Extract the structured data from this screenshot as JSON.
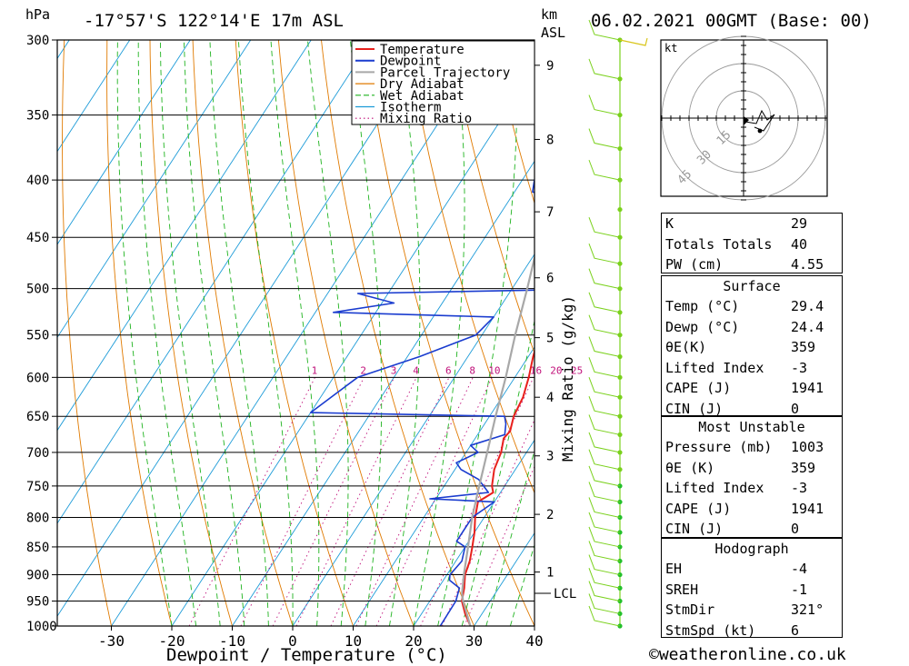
{
  "header": {
    "location": "-17°57'S 122°14'E 17m ASL",
    "datetime": "06.02.2021 00GMT (Base: 00)",
    "unit_left": "hPa",
    "unit_right_1": "km",
    "unit_right_2": "ASL"
  },
  "chart_data": {
    "type": "line",
    "title": "-17°57'S 122°14'E 17m ASL",
    "xlabel": "Dewpoint / Temperature (°C)",
    "ylabel": "hPa",
    "y2label": "Mixing Ratio (g/kg)",
    "pressure_levels": [
      300,
      350,
      400,
      450,
      500,
      550,
      600,
      650,
      700,
      750,
      800,
      850,
      900,
      950,
      1000
    ],
    "x_ticks": [
      -30,
      -20,
      -10,
      0,
      10,
      20,
      30,
      40
    ],
    "km_ticks": [
      {
        "label": "9",
        "p": 316
      },
      {
        "label": "8",
        "p": 368
      },
      {
        "label": "7",
        "p": 427
      },
      {
        "label": "6",
        "p": 489
      },
      {
        "label": "5",
        "p": 553
      },
      {
        "label": "4",
        "p": 625
      },
      {
        "label": "3",
        "p": 705
      },
      {
        "label": "2",
        "p": 795
      },
      {
        "label": "1",
        "p": 895
      }
    ],
    "lcl": {
      "label": "LCL",
      "p": 935
    },
    "mixing_ratio_labels": [
      "1",
      "2",
      "3",
      "4",
      "6",
      "8",
      "10",
      "16",
      "20",
      "25"
    ],
    "legend": [
      "Temperature",
      "Dewpoint",
      "Parcel Trajectory",
      "Dry Adiabat",
      "Wet Adiabat",
      "Isotherm",
      "Mixing Ratio"
    ],
    "legend_position": "top-right",
    "colors": {
      "temperature": "#e8201c",
      "dewpoint": "#1a3ccf",
      "parcel": "#a8a8a8",
      "dry_adiabat": "#e07a00",
      "wet_adiabat": "#1fb31f",
      "isotherm": "#1d9bd8",
      "mixing_ratio": "#c0107a",
      "wind": "#7ad11c"
    },
    "series": [
      {
        "name": "Temperature",
        "points": [
          [
            1000,
            29.4
          ],
          [
            975,
            27.2
          ],
          [
            950,
            25.3
          ],
          [
            925,
            24.3
          ],
          [
            900,
            23.0
          ],
          [
            875,
            22.3
          ],
          [
            850,
            21.2
          ],
          [
            825,
            20.0
          ],
          [
            800,
            18.5
          ],
          [
            775,
            17.3
          ],
          [
            760,
            18.8
          ],
          [
            750,
            17.9
          ],
          [
            725,
            16.5
          ],
          [
            700,
            15.8
          ],
          [
            680,
            14.7
          ],
          [
            670,
            15.0
          ],
          [
            650,
            14.0
          ],
          [
            625,
            13.5
          ],
          [
            600,
            12.3
          ],
          [
            575,
            10.8
          ],
          [
            550,
            9.5
          ],
          [
            530,
            8.2
          ],
          [
            520,
            9.3
          ],
          [
            500,
            8.6
          ],
          [
            475,
            6.8
          ],
          [
            450,
            5.6
          ],
          [
            425,
            4.5
          ],
          [
            400,
            3.3
          ],
          [
            375,
            1.8
          ],
          [
            360,
            0.5
          ]
        ]
      },
      {
        "name": "Dewpoint",
        "points": [
          [
            1000,
            24.4
          ],
          [
            950,
            24.3
          ],
          [
            925,
            23.5
          ],
          [
            910,
            21.0
          ],
          [
            900,
            20.5
          ],
          [
            875,
            21.0
          ],
          [
            850,
            20.0
          ],
          [
            840,
            18.0
          ],
          [
            800,
            18.0
          ],
          [
            775,
            20.0
          ],
          [
            770,
            9.0
          ],
          [
            760,
            18.0
          ],
          [
            740,
            15.0
          ],
          [
            725,
            11.0
          ],
          [
            715,
            9.5
          ],
          [
            700,
            12.0
          ],
          [
            690,
            10.0
          ],
          [
            675,
            14.5
          ],
          [
            660,
            13.5
          ],
          [
            650,
            12.5
          ],
          [
            645,
            -20.0
          ],
          [
            600,
            -16.0
          ],
          [
            575,
            -8.0
          ],
          [
            550,
            -1.0
          ],
          [
            530,
            0.0
          ],
          [
            525,
            -27.0
          ],
          [
            515,
            -18.0
          ],
          [
            505,
            -25.0
          ],
          [
            500,
            16.0
          ],
          [
            475,
            13.0
          ],
          [
            460,
            10.0
          ],
          [
            450,
            4.0
          ],
          [
            440,
            2.0
          ],
          [
            425,
            5.0
          ],
          [
            415,
            -1.0
          ],
          [
            410,
            -7.0
          ],
          [
            400,
            -8.0
          ],
          [
            395,
            -3.0
          ],
          [
            380,
            -3.5
          ],
          [
            370,
            -6.0
          ],
          [
            340,
            -3.0
          ],
          [
            320,
            0.0
          ],
          [
            315,
            0.0
          ],
          [
            300,
            -4.0
          ]
        ]
      },
      {
        "name": "Parcel Trajectory",
        "points": [
          [
            1000,
            29.4
          ],
          [
            950,
            25.5
          ],
          [
            935,
            24.5
          ],
          [
            900,
            22.8
          ],
          [
            850,
            20.5
          ],
          [
            800,
            18.0
          ],
          [
            750,
            15.8
          ],
          [
            700,
            13.5
          ],
          [
            650,
            11.0
          ],
          [
            600,
            8.5
          ],
          [
            550,
            5.5
          ],
          [
            500,
            2.5
          ],
          [
            450,
            -1.0
          ],
          [
            400,
            -5.0
          ],
          [
            370,
            -8.0
          ]
        ]
      }
    ],
    "wind_levels": [
      1000,
      975,
      950,
      925,
      900,
      875,
      850,
      825,
      800,
      775,
      750,
      725,
      700,
      675,
      650,
      625,
      600,
      575,
      550,
      525,
      500,
      475,
      450,
      425,
      400,
      375,
      350,
      325,
      300
    ],
    "hodograph": {
      "unit": "kt",
      "rings": [
        "15",
        "30",
        "45"
      ]
    }
  },
  "indices": {
    "rows": [
      {
        "label": "K",
        "value": "29"
      },
      {
        "label": "Totals Totals",
        "value": "40"
      },
      {
        "label": "PW (cm)",
        "value": "4.55"
      }
    ]
  },
  "surface": {
    "title": "Surface",
    "rows": [
      {
        "label": "Temp (°C)",
        "value": "29.4"
      },
      {
        "label": "Dewp (°C)",
        "value": "24.4"
      },
      {
        "label": "θE(K)",
        "value": "359"
      },
      {
        "label": "Lifted Index",
        "value": "-3"
      },
      {
        "label": "CAPE (J)",
        "value": "1941"
      },
      {
        "label": "CIN (J)",
        "value": "0"
      }
    ]
  },
  "most_unstable": {
    "title": "Most Unstable",
    "rows": [
      {
        "label": "Pressure (mb)",
        "value": "1003"
      },
      {
        "label": "θE (K)",
        "value": "359"
      },
      {
        "label": "Lifted Index",
        "value": "-3"
      },
      {
        "label": "CAPE (J)",
        "value": "1941"
      },
      {
        "label": "CIN (J)",
        "value": "0"
      }
    ]
  },
  "hodograph_table": {
    "title": "Hodograph",
    "rows": [
      {
        "label": "EH",
        "value": "-4"
      },
      {
        "label": "SREH",
        "value": "-1"
      },
      {
        "label": "StmDir",
        "value": "321°"
      },
      {
        "label": "StmSpd (kt)",
        "value": "6"
      }
    ]
  },
  "footer": {
    "credit": "©weatheronline.co.uk"
  }
}
